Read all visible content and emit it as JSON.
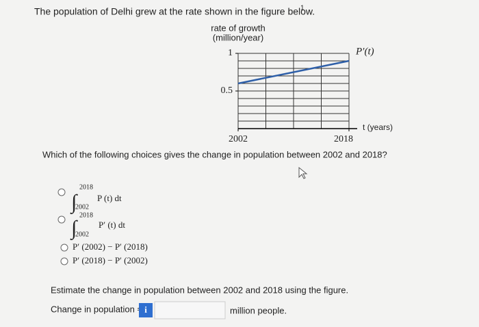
{
  "question": {
    "text": "The population of Delhi grew at the rate shown in the figure below.",
    "footnote": "1",
    "prompt": "Which of the following choices gives the change in population between 2002 and 2018?"
  },
  "chart_data": {
    "type": "line",
    "y_label": [
      "rate of growth",
      "(million/year)"
    ],
    "x_label": "t (years)",
    "x": [
      2002,
      2018
    ],
    "series": [
      {
        "name": "P′(t)",
        "color": "#2e5fa8",
        "values": [
          0.6,
          0.9
        ]
      }
    ],
    "xlim": [
      2002,
      2018
    ],
    "ylim": [
      0,
      1
    ],
    "xticks": [
      2002,
      2018
    ],
    "yticks": [
      0.5,
      1
    ],
    "xgrid": [
      2002,
      2006,
      2010,
      2014,
      2018
    ],
    "ygrid": [
      0,
      0.1,
      0.2,
      0.3,
      0.4,
      0.5,
      0.6,
      0.7,
      0.8,
      0.9,
      1
    ],
    "grid": true
  },
  "choices": [
    {
      "upper": "2018",
      "lower": "2002",
      "integrand": "P (t) dt"
    },
    {
      "upper": "2018",
      "lower": "2002",
      "integrand": "P′ (t) dt"
    },
    {
      "text": "P′ (2002) − P′ (2018)"
    },
    {
      "text": "P′ (2018) − P′ (2002)"
    }
  ],
  "part2": {
    "text": "Estimate the change in population between 2002 and 2018 using the figure.",
    "label": "Change in population ≈",
    "info": "i",
    "unit": "million people."
  }
}
